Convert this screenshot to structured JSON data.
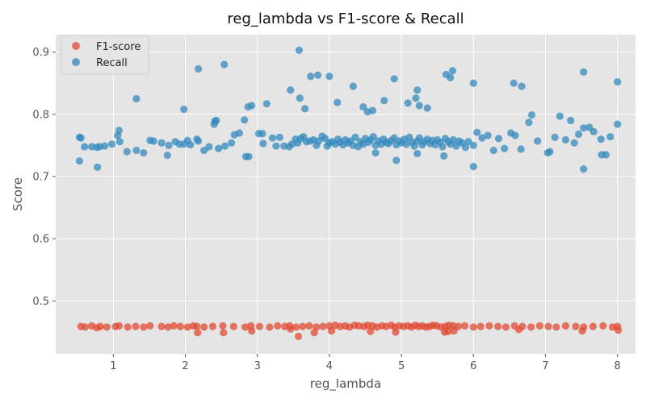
{
  "chart_data": {
    "type": "scatter",
    "title": "reg_lambda vs F1-score & Recall",
    "xlabel": "reg_lambda",
    "ylabel": "Score",
    "xlim": [
      0.2,
      8.25
    ],
    "ylim": [
      0.415,
      0.928
    ],
    "xticks": [
      "1",
      "2",
      "3",
      "4",
      "5",
      "6",
      "7",
      "8"
    ],
    "yticks": [
      "0.5",
      "0.6",
      "0.7",
      "0.8",
      "0.9"
    ],
    "grid": true,
    "legend": "top-left",
    "background_color": "#e5e5e5",
    "grid_color": "#ffffff",
    "series": [
      {
        "name": "F1-score",
        "color": "#e24a33",
        "x": [
          0.55,
          0.61,
          0.7,
          0.77,
          0.82,
          0.91,
          1.03,
          1.08,
          1.2,
          1.31,
          1.42,
          1.51,
          1.67,
          1.76,
          1.84,
          1.93,
          2.03,
          2.11,
          2.16,
          2.26,
          2.38,
          2.52,
          2.67,
          2.83,
          2.91,
          3.03,
          3.17,
          3.28,
          3.38,
          3.45,
          3.54,
          3.63,
          3.72,
          3.82,
          3.91,
          4.0,
          4.08,
          4.15,
          4.22,
          4.28,
          4.35,
          4.41,
          4.48,
          4.53,
          4.6,
          4.66,
          4.73,
          4.79,
          4.86,
          4.91,
          4.97,
          5.03,
          5.09,
          5.14,
          5.19,
          5.24,
          5.29,
          5.34,
          5.39,
          5.44,
          5.49,
          5.55,
          5.61,
          5.66,
          5.72,
          5.79,
          5.88,
          6.0,
          6.1,
          6.22,
          6.34,
          6.45,
          6.57,
          6.68,
          6.8,
          6.92,
          7.04,
          7.15,
          7.28,
          7.42,
          7.53,
          7.66,
          7.8,
          7.93,
          8.0,
          3.57,
          3.79,
          4.03,
          4.57,
          4.92,
          5.6,
          5.65,
          5.73,
          6.63,
          7.51,
          8.01,
          2.17,
          2.53,
          2.92,
          3.46
        ],
        "y": [
          0.459,
          0.458,
          0.46,
          0.457,
          0.459,
          0.458,
          0.459,
          0.46,
          0.458,
          0.459,
          0.458,
          0.46,
          0.459,
          0.458,
          0.46,
          0.459,
          0.458,
          0.46,
          0.459,
          0.458,
          0.459,
          0.46,
          0.459,
          0.458,
          0.46,
          0.459,
          0.458,
          0.46,
          0.459,
          0.46,
          0.458,
          0.459,
          0.46,
          0.458,
          0.459,
          0.46,
          0.461,
          0.459,
          0.46,
          0.458,
          0.461,
          0.46,
          0.459,
          0.461,
          0.46,
          0.458,
          0.46,
          0.459,
          0.461,
          0.458,
          0.46,
          0.459,
          0.46,
          0.458,
          0.461,
          0.459,
          0.46,
          0.458,
          0.459,
          0.461,
          0.46,
          0.458,
          0.459,
          0.461,
          0.46,
          0.459,
          0.46,
          0.458,
          0.459,
          0.46,
          0.459,
          0.458,
          0.46,
          0.459,
          0.458,
          0.46,
          0.459,
          0.458,
          0.46,
          0.459,
          0.458,
          0.459,
          0.46,
          0.458,
          0.459,
          0.443,
          0.449,
          0.452,
          0.451,
          0.45,
          0.45,
          0.451,
          0.452,
          0.454,
          0.452,
          0.453,
          0.449,
          0.449,
          0.452,
          0.455
        ]
      },
      {
        "name": "Recall",
        "color": "#348abd",
        "x": [
          0.53,
          0.55,
          0.6,
          0.7,
          0.77,
          0.81,
          0.88,
          0.98,
          1.06,
          1.08,
          1.09,
          1.19,
          1.32,
          1.42,
          1.51,
          1.56,
          1.67,
          1.75,
          1.77,
          1.86,
          1.92,
          1.98,
          2.03,
          2.07,
          2.16,
          2.18,
          2.26,
          2.33,
          2.4,
          2.41,
          2.46,
          2.55,
          2.64,
          2.68,
          2.75,
          2.82,
          2.88,
          2.92,
          3.02,
          3.08,
          3.13,
          3.21,
          3.26,
          3.31,
          3.37,
          3.44,
          3.48,
          3.53,
          3.56,
          3.6,
          3.64,
          3.68,
          3.73,
          3.78,
          3.82,
          3.85,
          3.9,
          3.94,
          3.97,
          4.0,
          4.04,
          4.08,
          4.12,
          4.15,
          4.19,
          4.22,
          4.26,
          4.29,
          4.33,
          4.36,
          4.4,
          4.43,
          4.47,
          4.5,
          4.54,
          4.57,
          4.61,
          4.64,
          4.68,
          4.72,
          4.75,
          4.79,
          4.82,
          4.86,
          4.9,
          4.93,
          4.97,
          5.0,
          5.04,
          5.07,
          5.11,
          5.15,
          5.18,
          5.22,
          5.25,
          5.29,
          5.32,
          5.36,
          5.4,
          5.43,
          5.47,
          5.5,
          5.54,
          5.57,
          5.61,
          5.65,
          5.68,
          5.72,
          5.76,
          5.8,
          5.84,
          5.89,
          5.93,
          6.0,
          6.05,
          6.12,
          6.2,
          6.28,
          6.35,
          6.43,
          6.52,
          6.58,
          6.66,
          6.77,
          6.81,
          6.89,
          7.03,
          7.06,
          7.13,
          7.2,
          7.28,
          7.35,
          7.4,
          7.46,
          7.53,
          7.61,
          7.67,
          7.77,
          7.84,
          7.9,
          8.0,
          3.58,
          2.54,
          2.18,
          1.32,
          1.98,
          2.43,
          2.87,
          3.07,
          3.46,
          3.59,
          3.66,
          3.74,
          3.84,
          4.0,
          4.11,
          4.33,
          4.47,
          4.53,
          4.6,
          4.76,
          4.9,
          5.09,
          5.2,
          5.22,
          5.25,
          5.36,
          5.62,
          5.68,
          5.71,
          6.0,
          6.56,
          6.67,
          7.53,
          8.0,
          2.84,
          4.64,
          4.93,
          5.22,
          5.59,
          6.0,
          7.53,
          7.78,
          0.53,
          0.78
        ],
        "y": [
          0.725,
          0.762,
          0.748,
          0.748,
          0.747,
          0.748,
          0.749,
          0.752,
          0.766,
          0.774,
          0.756,
          0.74,
          0.742,
          0.738,
          0.758,
          0.757,
          0.754,
          0.734,
          0.75,
          0.756,
          0.752,
          0.752,
          0.758,
          0.751,
          0.76,
          0.757,
          0.742,
          0.748,
          0.784,
          0.789,
          0.745,
          0.749,
          0.754,
          0.767,
          0.77,
          0.791,
          0.732,
          0.814,
          0.769,
          0.753,
          0.817,
          0.762,
          0.749,
          0.763,
          0.749,
          0.748,
          0.752,
          0.76,
          0.754,
          0.761,
          0.764,
          0.756,
          0.757,
          0.759,
          0.75,
          0.757,
          0.765,
          0.761,
          0.749,
          0.754,
          0.756,
          0.752,
          0.76,
          0.755,
          0.751,
          0.759,
          0.754,
          0.757,
          0.75,
          0.763,
          0.748,
          0.756,
          0.752,
          0.761,
          0.755,
          0.759,
          0.764,
          0.75,
          0.757,
          0.752,
          0.76,
          0.755,
          0.753,
          0.758,
          0.762,
          0.751,
          0.757,
          0.754,
          0.76,
          0.752,
          0.763,
          0.755,
          0.749,
          0.757,
          0.762,
          0.751,
          0.756,
          0.76,
          0.753,
          0.758,
          0.751,
          0.759,
          0.755,
          0.748,
          0.761,
          0.756,
          0.752,
          0.759,
          0.749,
          0.757,
          0.754,
          0.747,
          0.756,
          0.75,
          0.771,
          0.762,
          0.766,
          0.742,
          0.761,
          0.745,
          0.77,
          0.766,
          0.744,
          0.787,
          0.799,
          0.757,
          0.738,
          0.74,
          0.763,
          0.797,
          0.759,
          0.79,
          0.754,
          0.768,
          0.778,
          0.779,
          0.772,
          0.76,
          0.735,
          0.764,
          0.784,
          0.903,
          0.88,
          0.873,
          0.825,
          0.808,
          0.79,
          0.812,
          0.769,
          0.839,
          0.826,
          0.809,
          0.861,
          0.863,
          0.861,
          0.819,
          0.845,
          0.812,
          0.804,
          0.806,
          0.822,
          0.857,
          0.818,
          0.826,
          0.839,
          0.814,
          0.81,
          0.864,
          0.859,
          0.87,
          0.85,
          0.85,
          0.845,
          0.868,
          0.852,
          0.732,
          0.738,
          0.726,
          0.737,
          0.733,
          0.716,
          0.712,
          0.735,
          0.763,
          0.715
        ]
      }
    ]
  }
}
